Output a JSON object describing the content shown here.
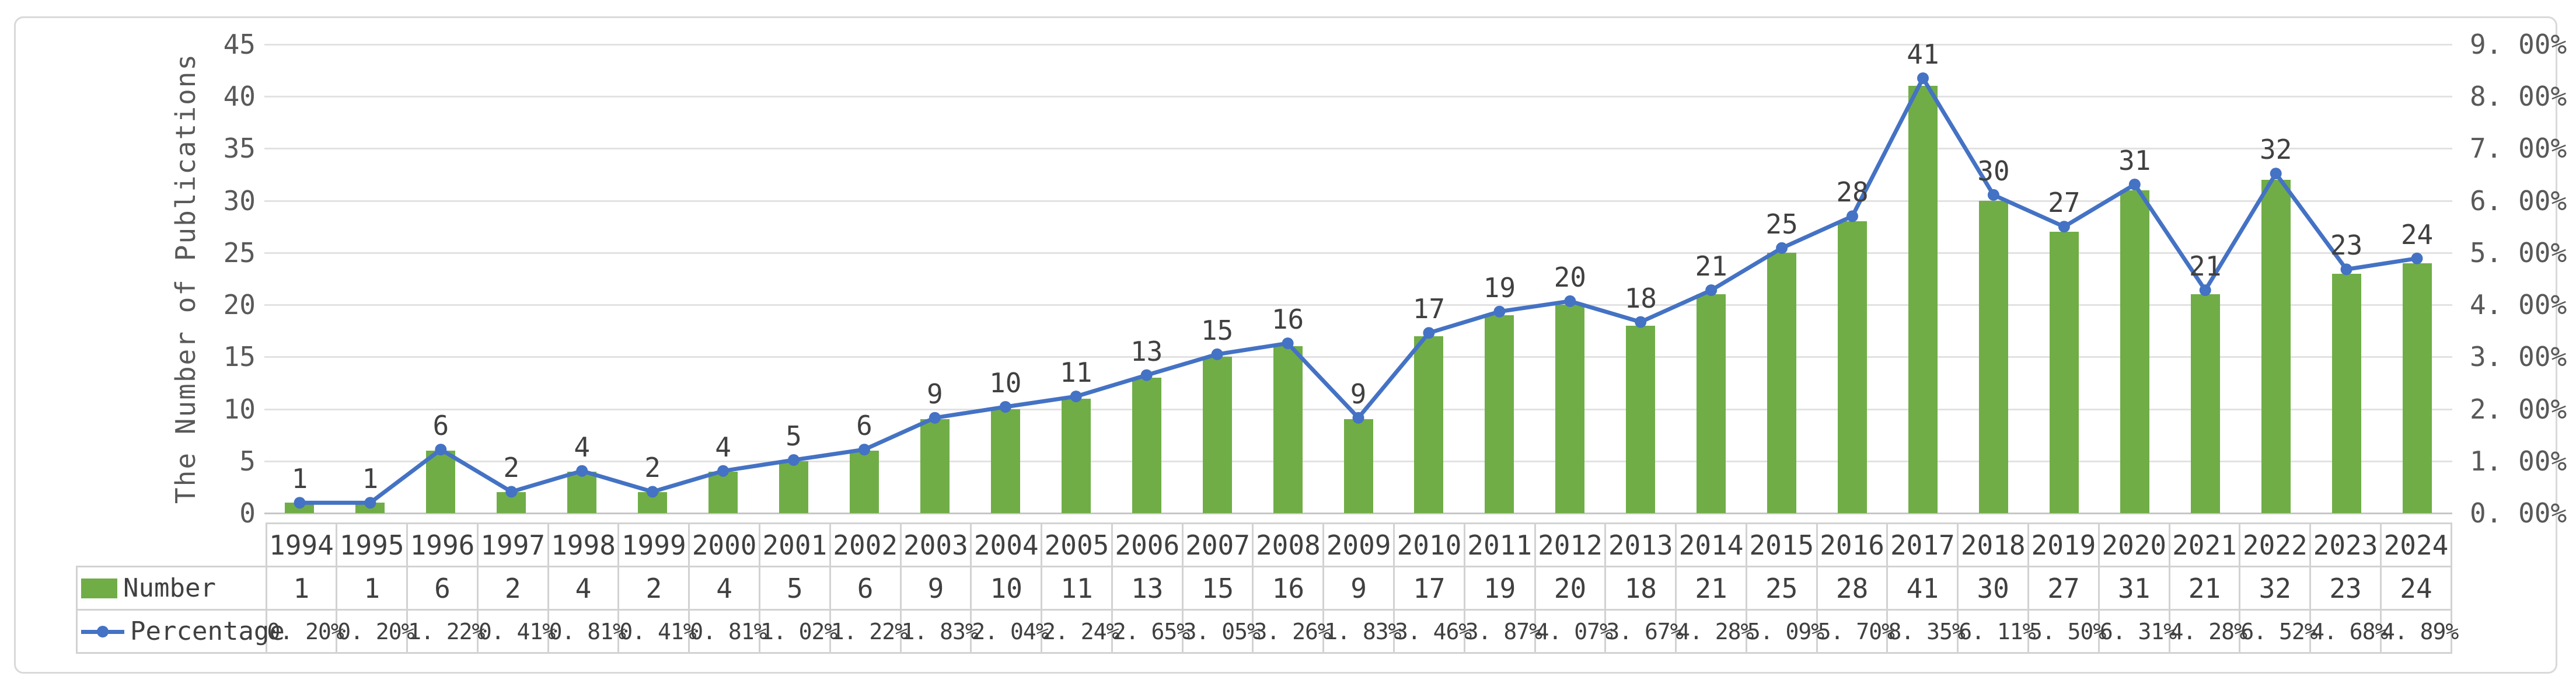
{
  "chart_data": {
    "type": "bar+line",
    "title": "",
    "categories": [
      "1994",
      "1995",
      "1996",
      "1997",
      "1998",
      "1999",
      "2000",
      "2001",
      "2002",
      "2003",
      "2004",
      "2005",
      "2006",
      "2007",
      "2008",
      "2009",
      "2010",
      "2011",
      "2012",
      "2013",
      "2014",
      "2015",
      "2016",
      "2017",
      "2018",
      "2019",
      "2020",
      "2021",
      "2022",
      "2023",
      "2024"
    ],
    "series": [
      {
        "name": "Number",
        "type": "bar",
        "axis": "left",
        "color": "#70AD47",
        "values": [
          1,
          1,
          6,
          2,
          4,
          2,
          4,
          5,
          6,
          9,
          10,
          11,
          13,
          15,
          16,
          9,
          17,
          19,
          20,
          18,
          21,
          25,
          28,
          41,
          30,
          27,
          31,
          21,
          32,
          23,
          24
        ]
      },
      {
        "name": "Percentage",
        "type": "line",
        "axis": "right",
        "color": "#4472C4",
        "values_percent": [
          0.2,
          0.2,
          1.22,
          0.41,
          0.81,
          0.41,
          0.81,
          1.02,
          1.22,
          1.83,
          2.04,
          2.24,
          2.65,
          3.05,
          3.26,
          1.83,
          3.46,
          3.87,
          4.07,
          3.67,
          4.28,
          5.09,
          5.7,
          8.35,
          6.11,
          5.5,
          6.31,
          4.28,
          6.52,
          4.68,
          4.89
        ],
        "labels": [
          "0. 20%",
          "0. 20%",
          "1. 22%",
          "0. 41%",
          "0. 81%",
          "0. 41%",
          "0. 81%",
          "1. 02%",
          "1. 22%",
          "1. 83%",
          "2. 04%",
          "2. 24%",
          "2. 65%",
          "3. 05%",
          "3. 26%",
          "1. 83%",
          "3. 46%",
          "3. 87%",
          "4. 07%",
          "3. 67%",
          "4. 28%",
          "5. 09%",
          "5. 70%",
          "8. 35%",
          "6. 11%",
          "5. 50%",
          "6. 31%",
          "4. 28%",
          "6. 52%",
          "4. 68%",
          "4. 89%"
        ]
      }
    ],
    "left_axis": {
      "title": "The Number of Publications",
      "min": 0,
      "max": 45,
      "step": 5,
      "ticks": [
        "45",
        "40",
        "35",
        "30",
        "25",
        "20",
        "15",
        "10",
        "5",
        "0"
      ]
    },
    "right_axis": {
      "min": 0,
      "max": 9,
      "step": 1,
      "ticks": [
        "9. 00%",
        "8. 00%",
        "7. 00%",
        "6. 00%",
        "5. 00%",
        "4. 00%",
        "3. 00%",
        "2. 00%",
        "1. 00%",
        "0. 00%"
      ]
    },
    "grid": true,
    "data_labels_series": "Number",
    "legend_position": "data-table-left"
  },
  "table": {
    "legend": [
      {
        "label": "Number",
        "swatch": "green-bar-swatch"
      },
      {
        "label": "Percentage",
        "swatch": "blue-line-marker-swatch"
      }
    ],
    "header_years": [
      "1994",
      "1995",
      "1996",
      "1997",
      "1998",
      "1999",
      "2000",
      "2001",
      "2002",
      "2003",
      "2004",
      "2005",
      "2006",
      "2007",
      "2008",
      "2009",
      "2010",
      "2011",
      "2012",
      "2013",
      "2014",
      "2015",
      "2016",
      "2017",
      "2018",
      "2019",
      "2020",
      "2021",
      "2022",
      "2023",
      "2024"
    ],
    "number_row": [
      "1",
      "1",
      "6",
      "2",
      "4",
      "2",
      "4",
      "5",
      "6",
      "9",
      "10",
      "11",
      "13",
      "15",
      "16",
      "9",
      "17",
      "19",
      "20",
      "18",
      "21",
      "25",
      "28",
      "41",
      "30",
      "27",
      "31",
      "21",
      "32",
      "23",
      "24"
    ],
    "percentage_row": [
      "0. 20%",
      "0. 20%",
      "1. 22%",
      "0. 41%",
      "0. 81%",
      "0. 41%",
      "0. 81%",
      "1. 02%",
      "1. 22%",
      "1. 83%",
      "2. 04%",
      "2. 24%",
      "2. 65%",
      "3. 05%",
      "3. 26%",
      "1. 83%",
      "3. 46%",
      "3. 87%",
      "4. 07%",
      "3. 67%",
      "4. 28%",
      "5. 09%",
      "5. 70%",
      "8. 35%",
      "6. 11%",
      "5. 50%",
      "6. 31%",
      "4. 28%",
      "6. 52%",
      "4. 68%",
      "4. 89%"
    ]
  },
  "colors": {
    "bar": "#70AD47",
    "line": "#4472C4",
    "grid": "#e2e2e2",
    "axis_text": "#595959",
    "label_text": "#404040",
    "frame_border": "#d9d9d9",
    "table_border": "#d2d2d2"
  }
}
